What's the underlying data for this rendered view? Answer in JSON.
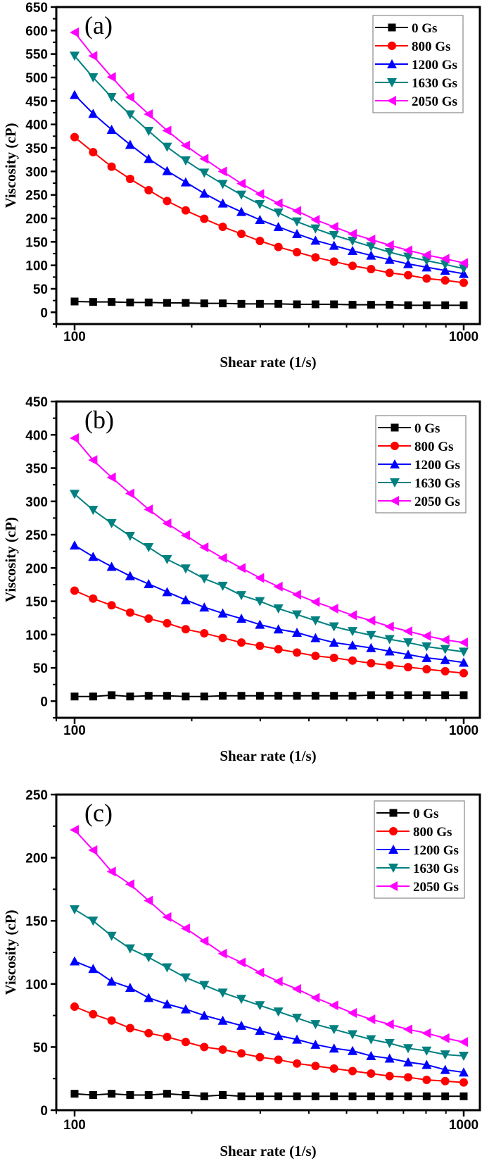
{
  "chart_data": [
    {
      "type": "line",
      "panel_label": "(a)",
      "xlabel": "Shear rate (1/s)",
      "ylabel": "Viscosity (cP)",
      "xscale": "log",
      "xlim": [
        100,
        1000
      ],
      "ylim": [
        -25,
        650
      ],
      "x_ticks": [
        "100",
        "1000"
      ],
      "y_ticks": [
        "0",
        "50",
        "100",
        "150",
        "200",
        "250",
        "300",
        "350",
        "400",
        "450",
        "500",
        "550",
        "600",
        "650"
      ],
      "legend_position": "top-right",
      "grid": false,
      "x": [
        100,
        111.6,
        124.5,
        138.9,
        155,
        172.9,
        193,
        215.4,
        240.3,
        268.3,
        299.4,
        334,
        372.8,
        416,
        464.2,
        518,
        578,
        645,
        719.7,
        803.1,
        896.2,
        1000
      ],
      "series": [
        {
          "name": "0 Gs",
          "color": "#000000",
          "marker": "square",
          "values": [
            23,
            22,
            22,
            21,
            21,
            20,
            20,
            19,
            19,
            18,
            18,
            18,
            17,
            17,
            17,
            16,
            16,
            16,
            15,
            15,
            15,
            15
          ]
        },
        {
          "name": "800 Gs",
          "color": "#ff0000",
          "marker": "circle",
          "values": [
            373,
            341,
            310,
            284,
            260,
            237,
            217,
            199,
            182,
            167,
            152,
            139,
            128,
            117,
            108,
            99,
            92,
            84,
            79,
            72,
            68,
            63
          ]
        },
        {
          "name": "1200 Gs",
          "color": "#0000ff",
          "marker": "triangle-up",
          "values": [
            463,
            423,
            389,
            357,
            327,
            301,
            277,
            253,
            232,
            214,
            197,
            182,
            167,
            153,
            142,
            131,
            121,
            112,
            103,
            96,
            89,
            82
          ]
        },
        {
          "name": "1630 Gs",
          "color": "#008080",
          "marker": "triangle-down",
          "values": [
            546,
            500,
            458,
            421,
            386,
            352,
            323,
            297,
            273,
            250,
            230,
            212,
            193,
            178,
            164,
            152,
            140,
            128,
            118,
            110,
            102,
            93
          ]
        },
        {
          "name": "2050 Gs",
          "color": "#ff00ff",
          "marker": "triangle-left",
          "values": [
            596,
            546,
            501,
            458,
            422,
            387,
            355,
            327,
            300,
            274,
            252,
            232,
            216,
            197,
            182,
            167,
            155,
            143,
            132,
            122,
            114,
            105
          ]
        }
      ]
    },
    {
      "type": "line",
      "panel_label": "(b)",
      "xlabel": "Shear rate (1/s)",
      "ylabel": "Viscosity (cP)",
      "xscale": "log",
      "xlim": [
        100,
        1000
      ],
      "ylim": [
        -25,
        450
      ],
      "x_ticks": [
        "100",
        "1000"
      ],
      "y_ticks": [
        "0",
        "50",
        "100",
        "150",
        "200",
        "250",
        "300",
        "350",
        "400",
        "450"
      ],
      "legend_position": "top-right",
      "grid": false,
      "x": [
        100,
        111.6,
        124.5,
        138.9,
        155,
        172.9,
        193,
        215.4,
        240.3,
        268.3,
        299.4,
        334,
        372.8,
        416,
        464.2,
        518,
        578,
        645,
        719.7,
        803.1,
        896.2,
        1000
      ],
      "series": [
        {
          "name": "0 Gs",
          "color": "#000000",
          "marker": "square",
          "values": [
            7,
            7,
            9,
            7,
            8,
            8,
            7,
            7,
            8,
            8,
            8,
            8,
            8,
            8,
            8,
            8,
            9,
            9,
            9,
            9,
            9,
            9
          ]
        },
        {
          "name": "800 Gs",
          "color": "#ff0000",
          "marker": "circle",
          "values": [
            166,
            154,
            144,
            133,
            124,
            117,
            108,
            102,
            95,
            88,
            83,
            78,
            73,
            68,
            65,
            61,
            57,
            54,
            51,
            48,
            45,
            42
          ]
        },
        {
          "name": "1200 Gs",
          "color": "#0000ff",
          "marker": "triangle-up",
          "values": [
            234,
            217,
            202,
            188,
            176,
            164,
            152,
            141,
            132,
            124,
            115,
            108,
            103,
            95,
            88,
            84,
            80,
            75,
            70,
            65,
            62,
            58
          ]
        },
        {
          "name": "1630 Gs",
          "color": "#008080",
          "marker": "triangle-down",
          "values": [
            311,
            287,
            267,
            248,
            231,
            213,
            199,
            184,
            173,
            159,
            150,
            139,
            130,
            121,
            112,
            105,
            99,
            93,
            88,
            82,
            78,
            74
          ]
        },
        {
          "name": "2050 Gs",
          "color": "#ff00ff",
          "marker": "triangle-left",
          "values": [
            395,
            362,
            336,
            312,
            288,
            267,
            249,
            231,
            215,
            200,
            185,
            172,
            160,
            149,
            139,
            129,
            121,
            112,
            105,
            98,
            92,
            88
          ]
        }
      ]
    },
    {
      "type": "line",
      "panel_label": "(c)",
      "xlabel": "Shear rate (1/s)",
      "ylabel": "Viscosity (cP)",
      "xscale": "log",
      "xlim": [
        100,
        1000
      ],
      "ylim": [
        0,
        250
      ],
      "x_ticks": [
        "100",
        "1000"
      ],
      "y_ticks": [
        "0",
        "50",
        "100",
        "150",
        "200",
        "250"
      ],
      "legend_position": "top-right",
      "grid": false,
      "x": [
        100,
        111.6,
        124.5,
        138.9,
        155,
        172.9,
        193,
        215.4,
        240.3,
        268.3,
        299.4,
        334,
        372.8,
        416,
        464.2,
        518,
        578,
        645,
        719.7,
        803.1,
        896.2,
        1000
      ],
      "series": [
        {
          "name": "0 Gs",
          "color": "#000000",
          "marker": "square",
          "values": [
            13,
            12,
            13,
            12,
            12,
            13,
            12,
            11,
            12,
            11,
            11,
            11,
            11,
            11,
            11,
            11,
            11,
            11,
            11,
            11,
            11,
            11
          ]
        },
        {
          "name": "800 Gs",
          "color": "#ff0000",
          "marker": "circle",
          "values": [
            82,
            76,
            71,
            65,
            61,
            58,
            54,
            50,
            48,
            45,
            42,
            40,
            37,
            35,
            33,
            31,
            29,
            27,
            26,
            24,
            23,
            22
          ]
        },
        {
          "name": "1200 Gs",
          "color": "#0000ff",
          "marker": "triangle-up",
          "values": [
            118,
            112,
            102,
            97,
            89,
            84,
            80,
            75,
            71,
            67,
            63,
            59,
            56,
            52,
            49,
            47,
            43,
            41,
            38,
            36,
            32,
            30
          ]
        },
        {
          "name": "1630 Gs",
          "color": "#008080",
          "marker": "triangle-down",
          "values": [
            159,
            150,
            138,
            128,
            121,
            113,
            105,
            99,
            93,
            88,
            83,
            78,
            73,
            68,
            64,
            60,
            56,
            53,
            49,
            47,
            44,
            43
          ]
        },
        {
          "name": "2050 Gs",
          "color": "#ff00ff",
          "marker": "triangle-left",
          "values": [
            222,
            206,
            189,
            179,
            166,
            153,
            144,
            134,
            124,
            117,
            109,
            102,
            96,
            89,
            83,
            77,
            72,
            68,
            64,
            61,
            57,
            54
          ]
        }
      ]
    }
  ]
}
